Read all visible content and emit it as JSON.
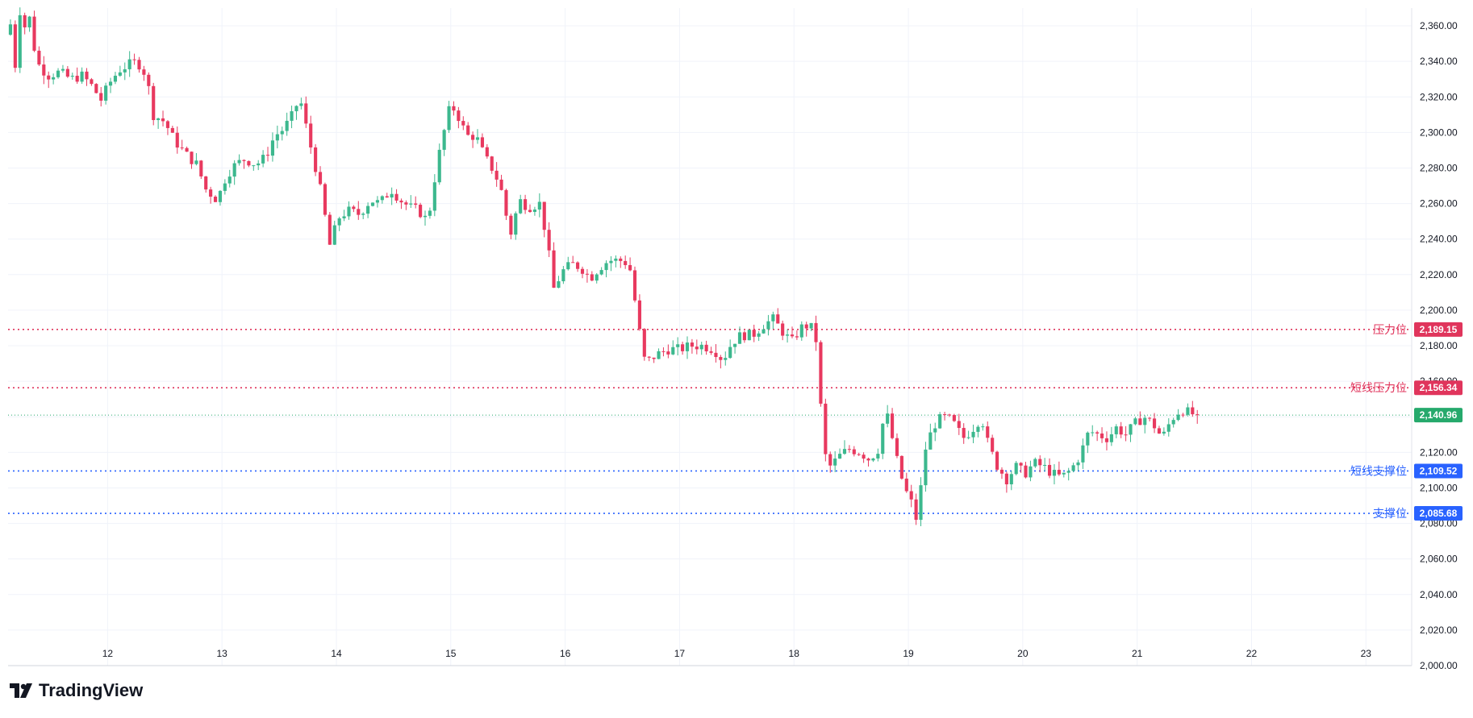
{
  "branding": {
    "logo_text": "TradingView",
    "logo_icon": "tradingview-logo-icon"
  },
  "colors": {
    "up": "#26a69a",
    "up_body": "#3cb88e",
    "down": "#e8395f",
    "resistance": "#e0355c",
    "support": "#2962ff",
    "last_price": "#26a96c",
    "grid": "#f0f3fa",
    "axis_text": "#131722"
  },
  "chart_data": {
    "type": "candlestick",
    "title": "",
    "xlabel": "",
    "ylabel": "",
    "ylim": [
      2000,
      2370
    ],
    "x_tick_labels": [
      "12",
      "13",
      "14",
      "15",
      "16",
      "17",
      "18",
      "19",
      "20",
      "21",
      "22",
      "23"
    ],
    "y_tick_labels": [
      "2,000.00",
      "2,020.00",
      "2,040.00",
      "2,060.00",
      "2,080.00",
      "2,100.00",
      "2,120.00",
      "2,140.00",
      "2,160.00",
      "2,180.00",
      "2,200.00",
      "2,220.00",
      "2,240.00",
      "2,260.00",
      "2,280.00",
      "2,300.00",
      "2,320.00",
      "2,340.00",
      "2,360.00"
    ],
    "x_range_days": [
      11.13,
      23.4
    ],
    "grid": true,
    "levels": [
      {
        "name": "压力位",
        "value": 2189.15,
        "label": "2,189.15",
        "kind": "resistance"
      },
      {
        "name": "短线压力位",
        "value": 2156.34,
        "label": "2,156.34",
        "kind": "resistance"
      },
      {
        "name": "短线支撑位",
        "value": 2109.52,
        "label": "2,109.52",
        "kind": "support"
      },
      {
        "name": "支撑位",
        "value": 2085.68,
        "label": "2,085.68",
        "kind": "support"
      }
    ],
    "last_price": {
      "value": 2140.96,
      "label": "2,140.96"
    },
    "price_path": [
      [
        11.13,
        2355
      ],
      [
        11.17,
        2362
      ],
      [
        11.21,
        2335
      ],
      [
        11.25,
        2370
      ],
      [
        11.29,
        2358
      ],
      [
        11.33,
        2368
      ],
      [
        11.37,
        2350
      ],
      [
        11.42,
        2338
      ],
      [
        11.5,
        2332
      ],
      [
        11.6,
        2334
      ],
      [
        11.7,
        2330
      ],
      [
        11.8,
        2332
      ],
      [
        11.9,
        2325
      ],
      [
        11.96,
        2318
      ],
      [
        12.04,
        2328
      ],
      [
        12.12,
        2335
      ],
      [
        12.2,
        2338
      ],
      [
        12.28,
        2340
      ],
      [
        12.36,
        2332
      ],
      [
        12.42,
        2310
      ],
      [
        12.52,
        2306
      ],
      [
        12.6,
        2296
      ],
      [
        12.7,
        2288
      ],
      [
        12.8,
        2282
      ],
      [
        12.88,
        2268
      ],
      [
        12.98,
        2262
      ],
      [
        13.06,
        2276
      ],
      [
        13.14,
        2282
      ],
      [
        13.22,
        2285
      ],
      [
        13.32,
        2282
      ],
      [
        13.4,
        2286
      ],
      [
        13.48,
        2298
      ],
      [
        13.56,
        2302
      ],
      [
        13.64,
        2310
      ],
      [
        13.7,
        2320
      ],
      [
        13.76,
        2302
      ],
      [
        13.84,
        2280
      ],
      [
        13.9,
        2262
      ],
      [
        13.96,
        2236
      ],
      [
        14.04,
        2252
      ],
      [
        14.12,
        2256
      ],
      [
        14.22,
        2254
      ],
      [
        14.32,
        2262
      ],
      [
        14.4,
        2260
      ],
      [
        14.5,
        2268
      ],
      [
        14.58,
        2262
      ],
      [
        14.66,
        2258
      ],
      [
        14.74,
        2256
      ],
      [
        14.82,
        2250
      ],
      [
        14.9,
        2282
      ],
      [
        14.96,
        2300
      ],
      [
        15.02,
        2316
      ],
      [
        15.08,
        2310
      ],
      [
        15.16,
        2298
      ],
      [
        15.24,
        2298
      ],
      [
        15.32,
        2286
      ],
      [
        15.4,
        2278
      ],
      [
        15.46,
        2268
      ],
      [
        15.54,
        2242
      ],
      [
        15.62,
        2262
      ],
      [
        15.7,
        2258
      ],
      [
        15.8,
        2260
      ],
      [
        15.86,
        2240
      ],
      [
        15.92,
        2212
      ],
      [
        16.0,
        2222
      ],
      [
        16.08,
        2226
      ],
      [
        16.16,
        2224
      ],
      [
        16.24,
        2218
      ],
      [
        16.32,
        2224
      ],
      [
        16.4,
        2228
      ],
      [
        16.5,
        2228
      ],
      [
        16.58,
        2226
      ],
      [
        16.62,
        2210
      ],
      [
        16.66,
        2192
      ],
      [
        16.72,
        2170
      ],
      [
        16.82,
        2175
      ],
      [
        16.92,
        2178
      ],
      [
        17.02,
        2178
      ],
      [
        17.12,
        2180
      ],
      [
        17.22,
        2180
      ],
      [
        17.32,
        2178
      ],
      [
        17.4,
        2172
      ],
      [
        17.48,
        2182
      ],
      [
        17.56,
        2186
      ],
      [
        17.66,
        2186
      ],
      [
        17.76,
        2192
      ],
      [
        17.84,
        2195
      ],
      [
        17.92,
        2188
      ],
      [
        18.0,
        2182
      ],
      [
        18.08,
        2190
      ],
      [
        18.16,
        2192
      ],
      [
        18.22,
        2182
      ],
      [
        18.28,
        2120
      ],
      [
        18.34,
        2112
      ],
      [
        18.42,
        2118
      ],
      [
        18.5,
        2122
      ],
      [
        18.6,
        2120
      ],
      [
        18.68,
        2116
      ],
      [
        18.76,
        2122
      ],
      [
        18.82,
        2145
      ],
      [
        18.88,
        2128
      ],
      [
        18.94,
        2110
      ],
      [
        19.0,
        2098
      ],
      [
        19.06,
        2090
      ],
      [
        19.1,
        2080
      ],
      [
        19.16,
        2120
      ],
      [
        19.24,
        2135
      ],
      [
        19.32,
        2140
      ],
      [
        19.4,
        2138
      ],
      [
        19.5,
        2128
      ],
      [
        19.58,
        2133
      ],
      [
        19.66,
        2140
      ],
      [
        19.72,
        2124
      ],
      [
        19.8,
        2112
      ],
      [
        19.88,
        2105
      ],
      [
        19.96,
        2112
      ],
      [
        20.04,
        2108
      ],
      [
        20.12,
        2114
      ],
      [
        20.2,
        2112
      ],
      [
        20.28,
        2108
      ],
      [
        20.36,
        2106
      ],
      [
        20.44,
        2110
      ],
      [
        20.52,
        2118
      ],
      [
        20.6,
        2132
      ],
      [
        20.68,
        2130
      ],
      [
        20.76,
        2128
      ],
      [
        20.84,
        2134
      ],
      [
        20.92,
        2130
      ],
      [
        21.0,
        2136
      ],
      [
        21.08,
        2140
      ],
      [
        21.16,
        2136
      ],
      [
        21.24,
        2128
      ],
      [
        21.3,
        2136
      ],
      [
        21.36,
        2142
      ],
      [
        21.42,
        2144
      ],
      [
        21.48,
        2142
      ],
      [
        21.54,
        2140.96
      ]
    ]
  }
}
